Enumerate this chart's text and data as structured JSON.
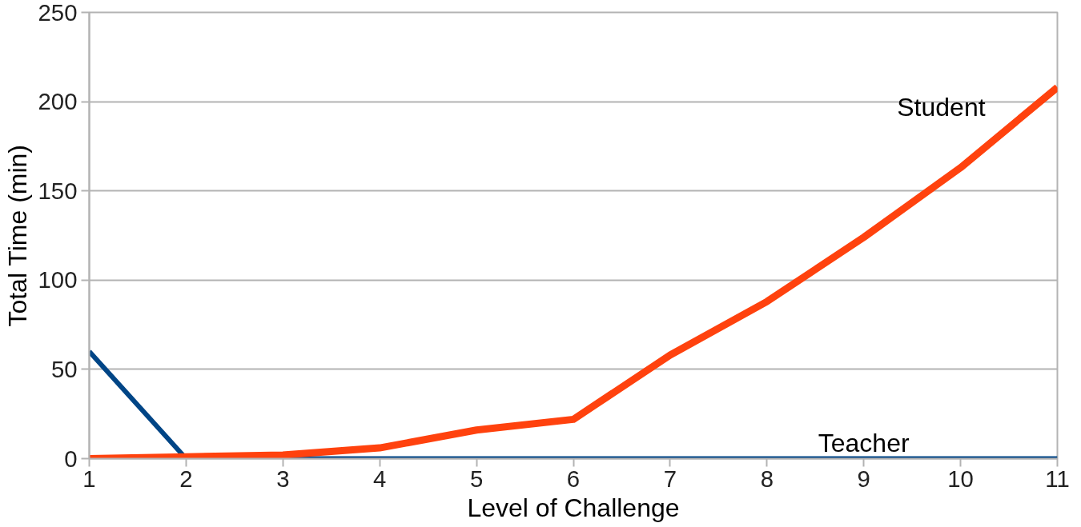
{
  "chart_data": {
    "type": "line",
    "xlabel": "Level of Challenge",
    "ylabel": "Total Time (min)",
    "x": [
      1,
      2,
      3,
      4,
      5,
      6,
      7,
      8,
      9,
      10,
      11
    ],
    "series": [
      {
        "name": "Teacher",
        "color": "#004586",
        "values": [
          60,
          0,
          0,
          0,
          0,
          0,
          0,
          0,
          0,
          0,
          0
        ]
      },
      {
        "name": "Student",
        "color": "#ff420e",
        "values": [
          0,
          1,
          2,
          6,
          16,
          22,
          58,
          88,
          124,
          163,
          208
        ]
      }
    ],
    "xlim": [
      1,
      11
    ],
    "ylim": [
      0,
      250
    ],
    "xticks": [
      1,
      2,
      3,
      4,
      5,
      6,
      7,
      8,
      9,
      10,
      11
    ],
    "yticks": [
      0,
      50,
      100,
      150,
      200,
      250
    ],
    "grid": "y",
    "legend": false,
    "marker": "none",
    "line_style": "solid"
  }
}
